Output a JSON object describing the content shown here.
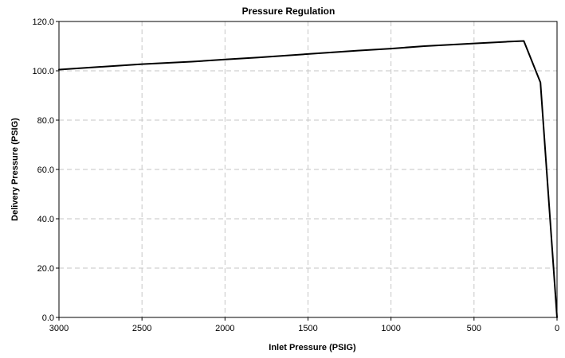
{
  "chart_data": {
    "type": "line",
    "title": "Pressure Regulation",
    "xlabel": "Inlet Pressure (PSIG)",
    "ylabel": "Delivery Pressure (PSIG)",
    "xlim": [
      3000,
      0
    ],
    "ylim": [
      0,
      120
    ],
    "x_reversed": true,
    "x_ticks": [
      3000,
      2500,
      2000,
      1500,
      1000,
      500,
      0
    ],
    "x_tick_labels": [
      "3000",
      "2500",
      "2000",
      "1500",
      "1000",
      "500",
      "0"
    ],
    "y_ticks": [
      0,
      20,
      40,
      60,
      80,
      100,
      120
    ],
    "y_tick_labels": [
      "0.0",
      "20.0",
      "40.0",
      "60.0",
      "80.0",
      "100.0",
      "120.0"
    ],
    "grid": true,
    "legend": "none",
    "series": [
      {
        "color": "#000000",
        "x": [
          3000,
          2500,
          2200,
          2000,
          1800,
          1500,
          1200,
          1000,
          800,
          500,
          300,
          200,
          100,
          0
        ],
        "y": [
          100.5,
          102.7,
          103.7,
          104.6,
          105.4,
          106.8,
          108.2,
          109.0,
          110.0,
          111.1,
          111.8,
          112.1,
          95.3,
          0.0
        ]
      }
    ]
  }
}
